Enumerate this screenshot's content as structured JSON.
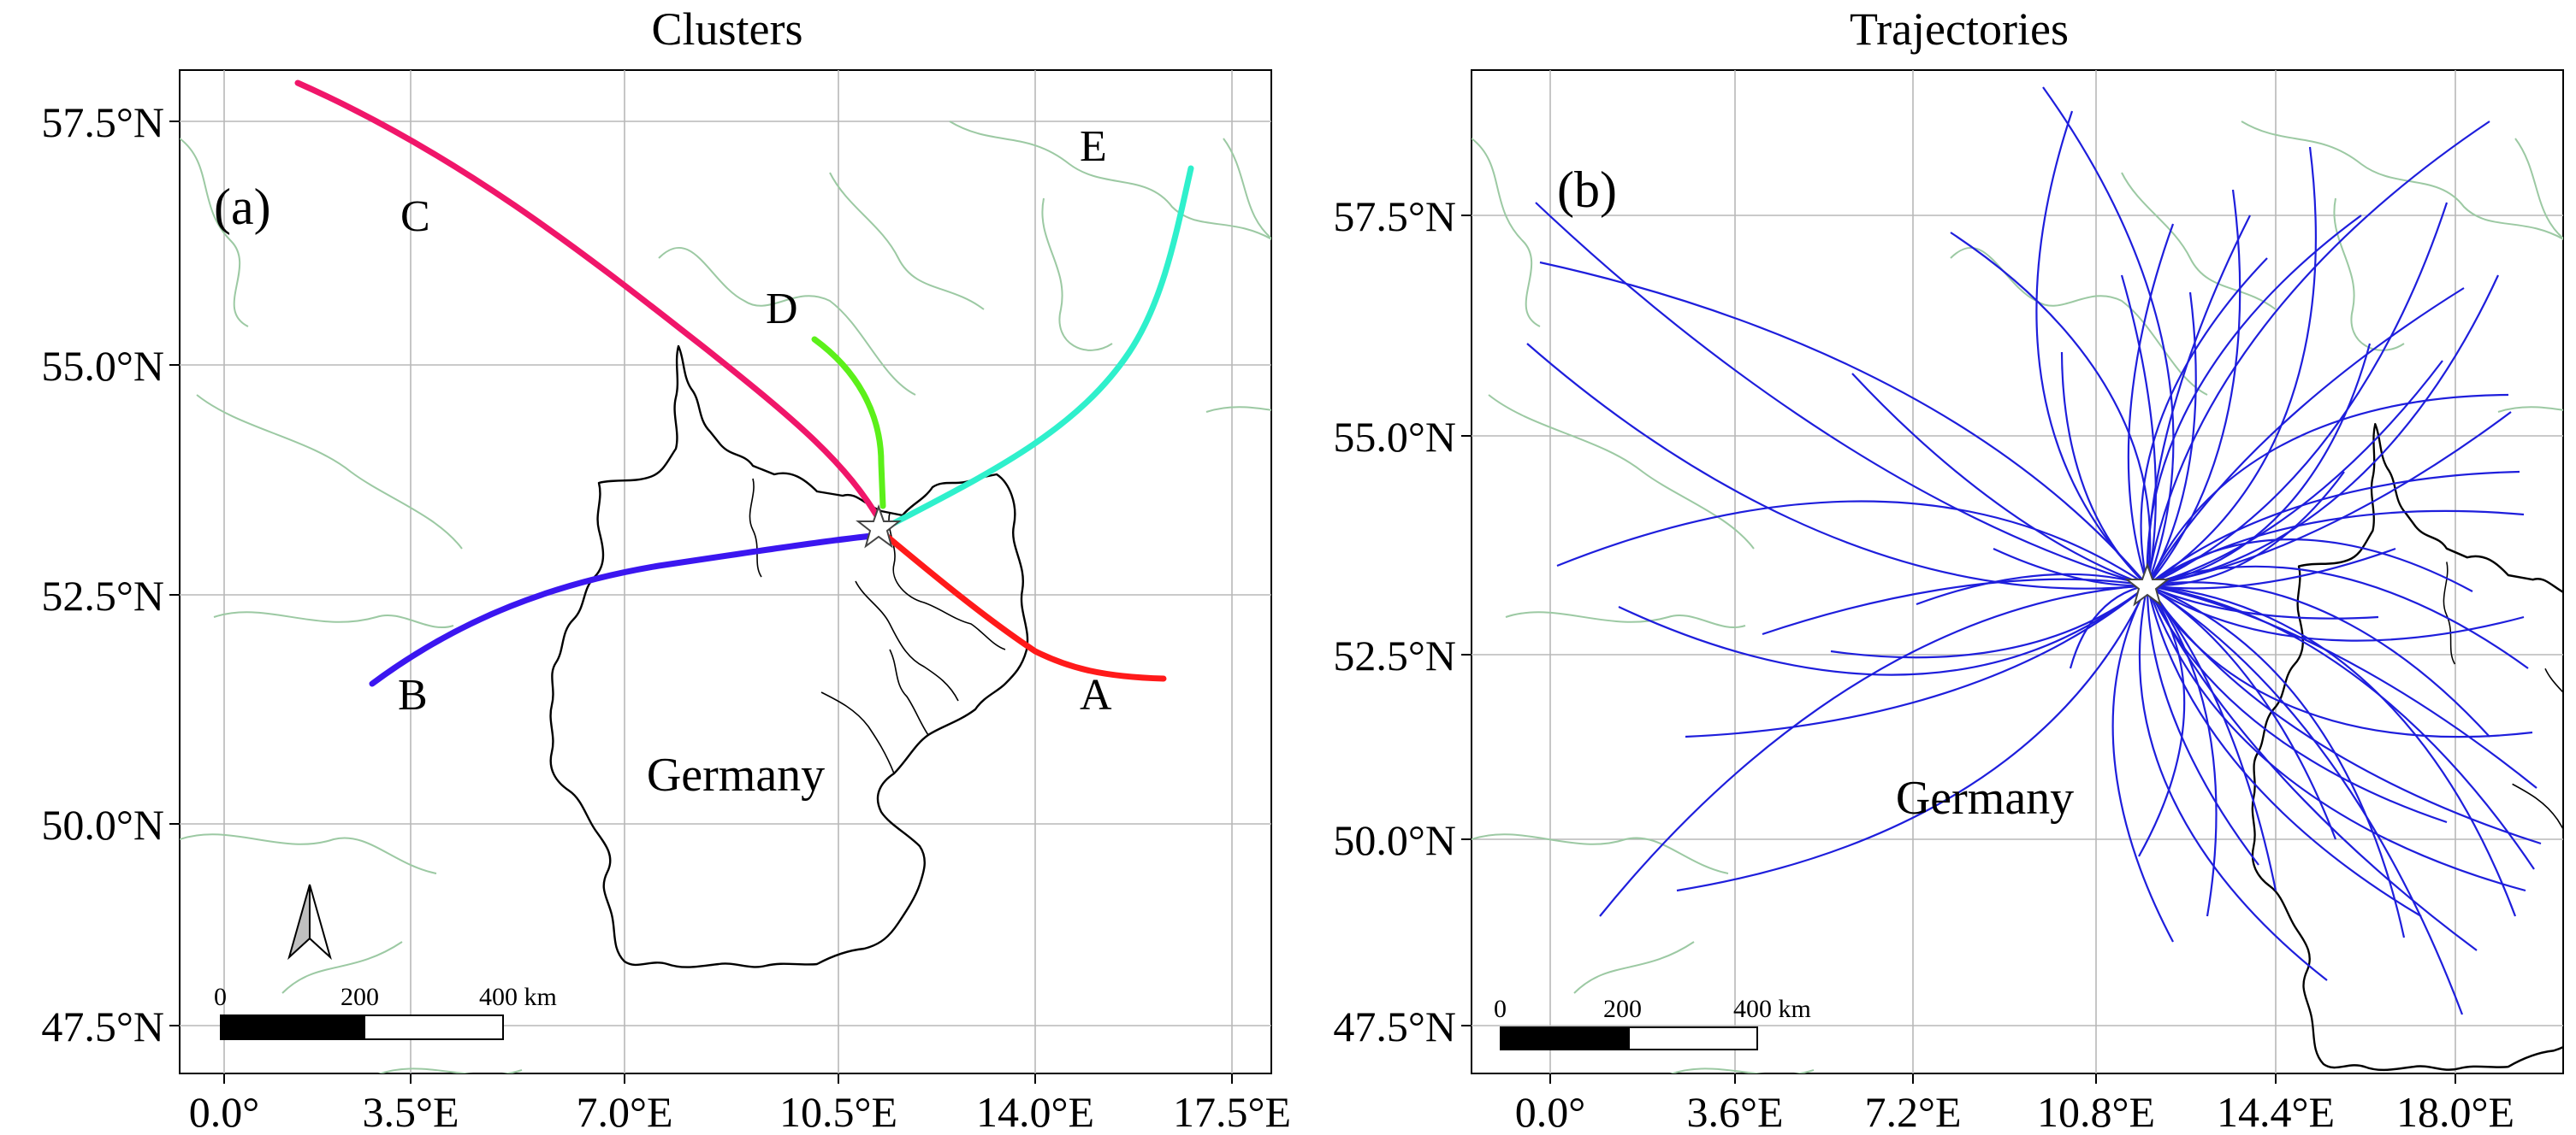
{
  "panels": {
    "a": {
      "title": "Clusters",
      "tag": "(a)",
      "country": "Germany",
      "y_ticks": [
        "57.5°N",
        "55.0°N",
        "52.5°N",
        "50.0°N",
        "47.5°N"
      ],
      "x_ticks": [
        "0.0°",
        "3.5°E",
        "7.0°E",
        "10.5°E",
        "14.0°E",
        "17.5°E"
      ],
      "scale_bar": {
        "zero": "0",
        "mid": "200",
        "end": "400 km"
      },
      "clusters": [
        {
          "name": "A",
          "color": "#ff1a1a"
        },
        {
          "name": "B",
          "color": "#3b16f0"
        },
        {
          "name": "C",
          "color": "#f0166a"
        },
        {
          "name": "D",
          "color": "#5cf01a"
        },
        {
          "name": "E",
          "color": "#2ff0cc"
        }
      ]
    },
    "b": {
      "title": "Trajectories",
      "tag": "(b)",
      "country": "Germany",
      "y_ticks": [
        "57.5°N",
        "55.0°N",
        "52.5°N",
        "50.0°N",
        "47.5°N"
      ],
      "x_ticks": [
        "0.0°",
        "3.6°E",
        "7.2°E",
        "10.8°E",
        "14.4°E",
        "18.0°E"
      ],
      "scale_bar": {
        "zero": "0",
        "mid": "200",
        "end": "400 km"
      },
      "trajectory_color": "#1e1edc"
    }
  },
  "colors": {
    "coastline": "#9cc9a3",
    "grid": "#b8b8b8",
    "border": "#000000"
  }
}
